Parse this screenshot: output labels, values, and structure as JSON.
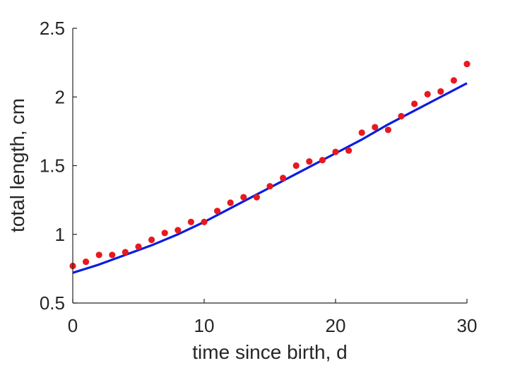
{
  "chart_data": {
    "type": "scatter",
    "title": "",
    "xlabel": "time since birth, d",
    "ylabel": "total length, cm",
    "xlim": [
      0,
      30
    ],
    "ylim": [
      0.5,
      2.5
    ],
    "xticks": [
      "0",
      "10",
      "20",
      "30"
    ],
    "xtick_values": [
      0,
      10,
      20,
      30
    ],
    "yticks": [
      "0.5",
      "1",
      "1.5",
      "2",
      "2.5"
    ],
    "ytick_values": [
      0.5,
      1.0,
      1.5,
      2.0,
      2.5
    ],
    "grid": false,
    "legend": "none",
    "series": [
      {
        "kind": "points",
        "color": "#e8191e",
        "x": [
          0,
          1,
          2,
          3,
          4,
          5,
          6,
          7,
          8,
          9,
          10,
          11,
          12,
          13,
          14,
          15,
          16,
          17,
          18,
          19,
          20,
          21,
          22,
          23,
          24,
          25,
          26,
          27,
          28,
          29,
          30
        ],
        "y": [
          0.77,
          0.8,
          0.85,
          0.85,
          0.87,
          0.91,
          0.96,
          1.01,
          1.03,
          1.09,
          1.09,
          1.17,
          1.23,
          1.27,
          1.27,
          1.35,
          1.41,
          1.5,
          1.53,
          1.54,
          1.6,
          1.61,
          1.74,
          1.78,
          1.76,
          1.86,
          1.95,
          2.02,
          2.04,
          2.12,
          2.24
        ]
      },
      {
        "kind": "line",
        "color": "#0b1ce0",
        "x": [
          0,
          2,
          4,
          6,
          8,
          10,
          12,
          14,
          16,
          18,
          20,
          22,
          24,
          26,
          28,
          30
        ],
        "y": [
          0.72,
          0.78,
          0.85,
          0.92,
          1.0,
          1.09,
          1.19,
          1.29,
          1.39,
          1.49,
          1.59,
          1.69,
          1.8,
          1.9,
          2.0,
          2.1
        ]
      }
    ]
  }
}
